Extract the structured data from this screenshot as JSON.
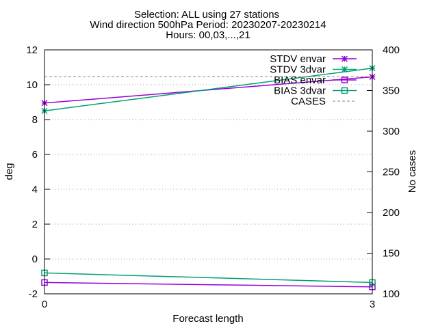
{
  "chart_data": {
    "type": "line",
    "title_lines": [
      "Selection: ALL using    27 stations",
      "Wind direction 500hPa   Period: 20230207-20230214",
      "Hours: 00,03,...,21"
    ],
    "xlabel": "Forecast length",
    "ylabel": "deg",
    "y2label": "No cases",
    "x": [
      0,
      3
    ],
    "xlim": [
      0,
      3
    ],
    "xticks": [
      0,
      3
    ],
    "ylim": [
      -2,
      12
    ],
    "yticks": [
      -2,
      0,
      2,
      4,
      6,
      8,
      10,
      12
    ],
    "y2lim": [
      100,
      400
    ],
    "y2ticks": [
      100,
      150,
      200,
      250,
      300,
      350,
      400
    ],
    "grid": "horizontal dotted",
    "legend_position": "top-right",
    "series": [
      {
        "name": "STDV envar",
        "axis": "y",
        "values": [
          8.95,
          10.45
        ],
        "color": "#9400d3",
        "marker": "star",
        "dash": false
      },
      {
        "name": "STDV 3dvar",
        "axis": "y",
        "values": [
          8.5,
          10.95
        ],
        "color": "#009e73",
        "marker": "star",
        "dash": false
      },
      {
        "name": "BIAS envar",
        "axis": "y",
        "values": [
          -1.35,
          -1.6
        ],
        "color": "#9400d3",
        "marker": "square",
        "dash": false
      },
      {
        "name": "BIAS 3dvar",
        "axis": "y",
        "values": [
          -0.8,
          -1.35
        ],
        "color": "#009e73",
        "marker": "square",
        "dash": false
      },
      {
        "name": "CASES",
        "axis": "y2",
        "values": [
          367,
          367
        ],
        "color": "#808080",
        "marker": "none",
        "dash": true
      }
    ]
  }
}
